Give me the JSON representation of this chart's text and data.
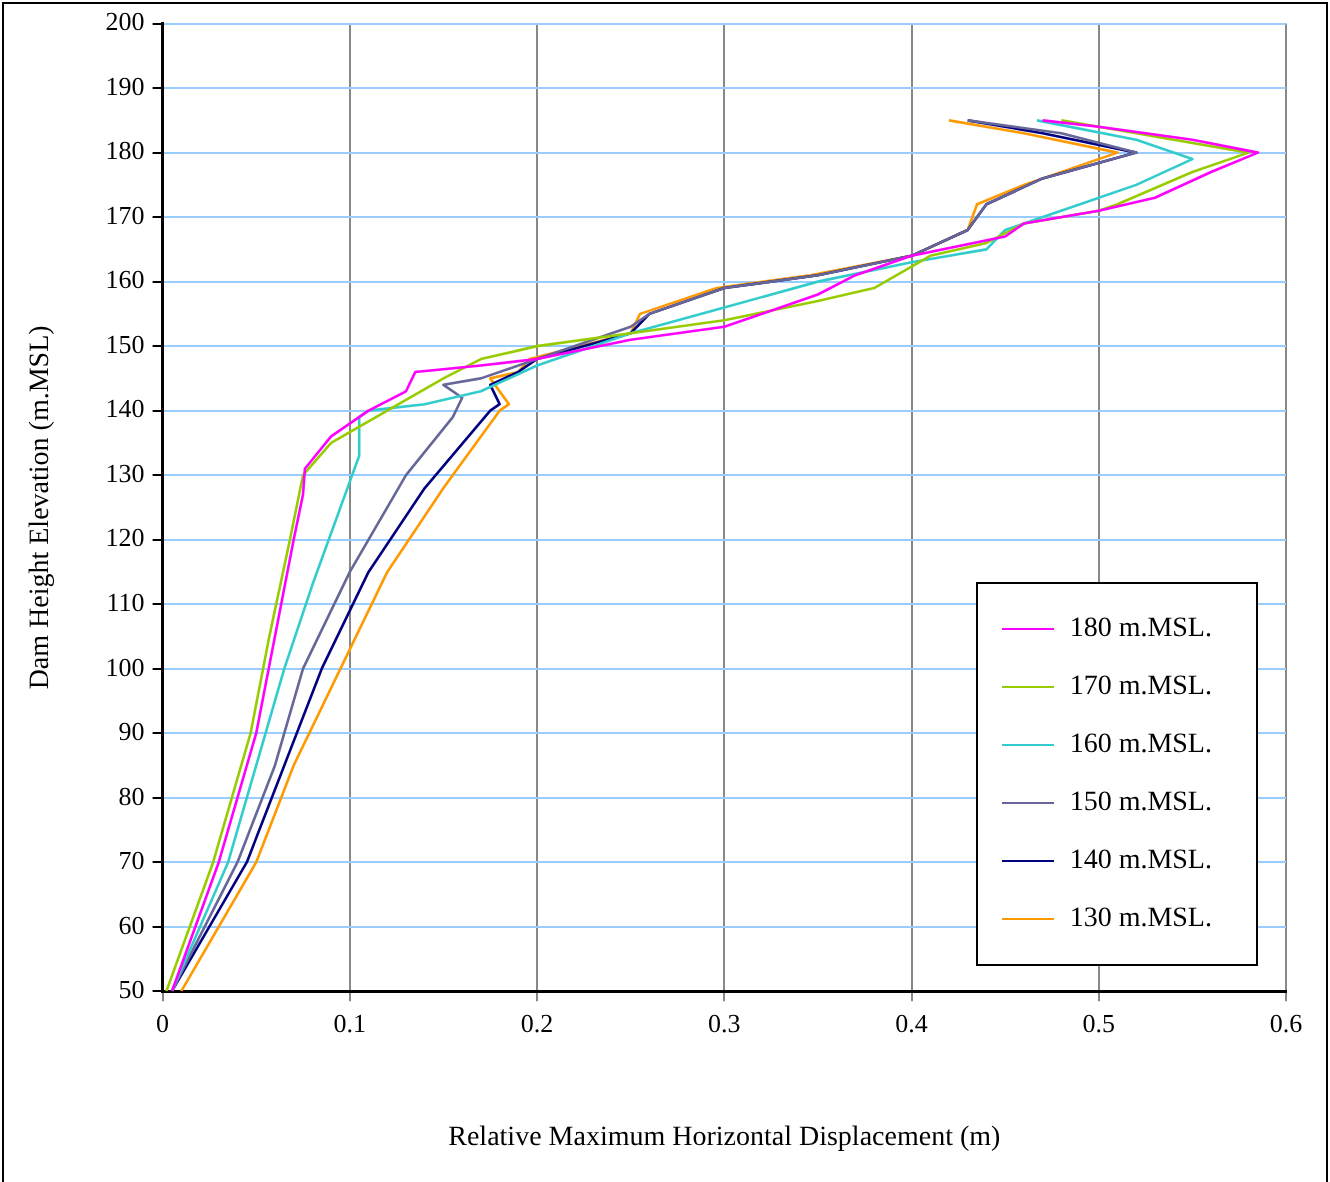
{
  "chart_data": {
    "type": "line",
    "xlabel": "Relative Maximum Horizontal Displacement (m)",
    "ylabel": "Dam Height Elevation (m.MSL)",
    "xlim": [
      0,
      0.6
    ],
    "xticks": [
      0,
      0.1,
      0.2,
      0.3,
      0.4,
      0.5,
      0.6
    ],
    "ylim": [
      50,
      200
    ],
    "yticks": [
      50,
      60,
      70,
      80,
      90,
      100,
      110,
      120,
      130,
      140,
      150,
      160,
      170,
      180,
      190,
      200
    ],
    "grid": true,
    "legend": "bottom right",
    "marker": "none",
    "line_style": "solid",
    "series": [
      {
        "name": "180 m.MSL.",
        "color": "#ff00ff",
        "x": [
          0.005,
          0.03,
          0.05,
          0.06,
          0.07,
          0.075,
          0.076,
          0.09,
          0.11,
          0.13,
          0.135,
          0.17,
          0.2,
          0.25,
          0.3,
          0.35,
          0.37,
          0.4,
          0.45,
          0.46,
          0.5,
          0.53,
          0.56,
          0.585,
          0.55,
          0.5,
          0.47
        ],
        "values": [
          50,
          70,
          90,
          105,
          120,
          127,
          131,
          136,
          140,
          143,
          146,
          147,
          148,
          151,
          153,
          158,
          161,
          164,
          167,
          169,
          171,
          173,
          177,
          180,
          182,
          184,
          185
        ]
      },
      {
        "name": "170 m.MSL.",
        "color": "#99cc00",
        "x": [
          0.002,
          0.027,
          0.047,
          0.057,
          0.068,
          0.075,
          0.09,
          0.12,
          0.15,
          0.17,
          0.2,
          0.25,
          0.3,
          0.35,
          0.38,
          0.41,
          0.44,
          0.46,
          0.5,
          0.51,
          0.55,
          0.58,
          0.54,
          0.5,
          0.48
        ],
        "values": [
          50,
          70,
          90,
          105,
          120,
          130,
          135,
          140,
          145,
          148,
          150,
          152,
          154,
          157,
          159,
          164,
          166,
          169,
          171,
          172,
          177,
          180,
          182,
          184,
          185
        ]
      },
      {
        "name": "160 m.MSL.",
        "color": "#33cccc",
        "x": [
          0.005,
          0.035,
          0.05,
          0.065,
          0.08,
          0.095,
          0.105,
          0.105,
          0.11,
          0.14,
          0.17,
          0.2,
          0.25,
          0.3,
          0.35,
          0.4,
          0.44,
          0.45,
          0.46,
          0.49,
          0.52,
          0.55,
          0.52,
          0.467
        ],
        "values": [
          50,
          70,
          85,
          100,
          113,
          125,
          133,
          139,
          140,
          141,
          143,
          147,
          152,
          156,
          160,
          163,
          165,
          168,
          169,
          172,
          175,
          179,
          182,
          185
        ]
      },
      {
        "name": "150 m.MSL.",
        "color": "#666699",
        "x": [
          0.005,
          0.04,
          0.06,
          0.075,
          0.1,
          0.13,
          0.155,
          0.16,
          0.15,
          0.17,
          0.2,
          0.25,
          0.26,
          0.3,
          0.35,
          0.4,
          0.43,
          0.44,
          0.47,
          0.52,
          0.48,
          0.43
        ],
        "values": [
          50,
          70,
          85,
          100,
          115,
          130,
          139,
          142,
          144,
          145,
          148,
          153,
          155,
          159,
          161,
          164,
          168,
          172,
          176,
          180,
          183,
          185
        ]
      },
      {
        "name": "140 m.MSL.",
        "color": "#000080",
        "x": [
          0.005,
          0.045,
          0.065,
          0.085,
          0.11,
          0.14,
          0.175,
          0.18,
          0.175,
          0.19,
          0.2,
          0.25,
          0.26,
          0.3,
          0.35,
          0.4,
          0.43,
          0.44,
          0.47,
          0.52,
          0.47,
          0.43
        ],
        "values": [
          50,
          70,
          85,
          100,
          115,
          128,
          140,
          141,
          144,
          146,
          148,
          152,
          155,
          159,
          161,
          164,
          168,
          172,
          176,
          180,
          183,
          185
        ]
      },
      {
        "name": "130 m.MSL.",
        "color": "#ff9900",
        "x": [
          0.01,
          0.05,
          0.07,
          0.095,
          0.12,
          0.15,
          0.18,
          0.185,
          0.175,
          0.19,
          0.196,
          0.25,
          0.255,
          0.296,
          0.346,
          0.4,
          0.43,
          0.435,
          0.46,
          0.51,
          0.46,
          0.42
        ],
        "values": [
          50,
          70,
          85,
          100,
          115,
          128,
          140,
          141,
          145,
          146,
          148,
          152,
          155,
          159,
          161,
          164,
          168,
          172,
          175,
          180,
          183,
          185
        ]
      }
    ]
  }
}
